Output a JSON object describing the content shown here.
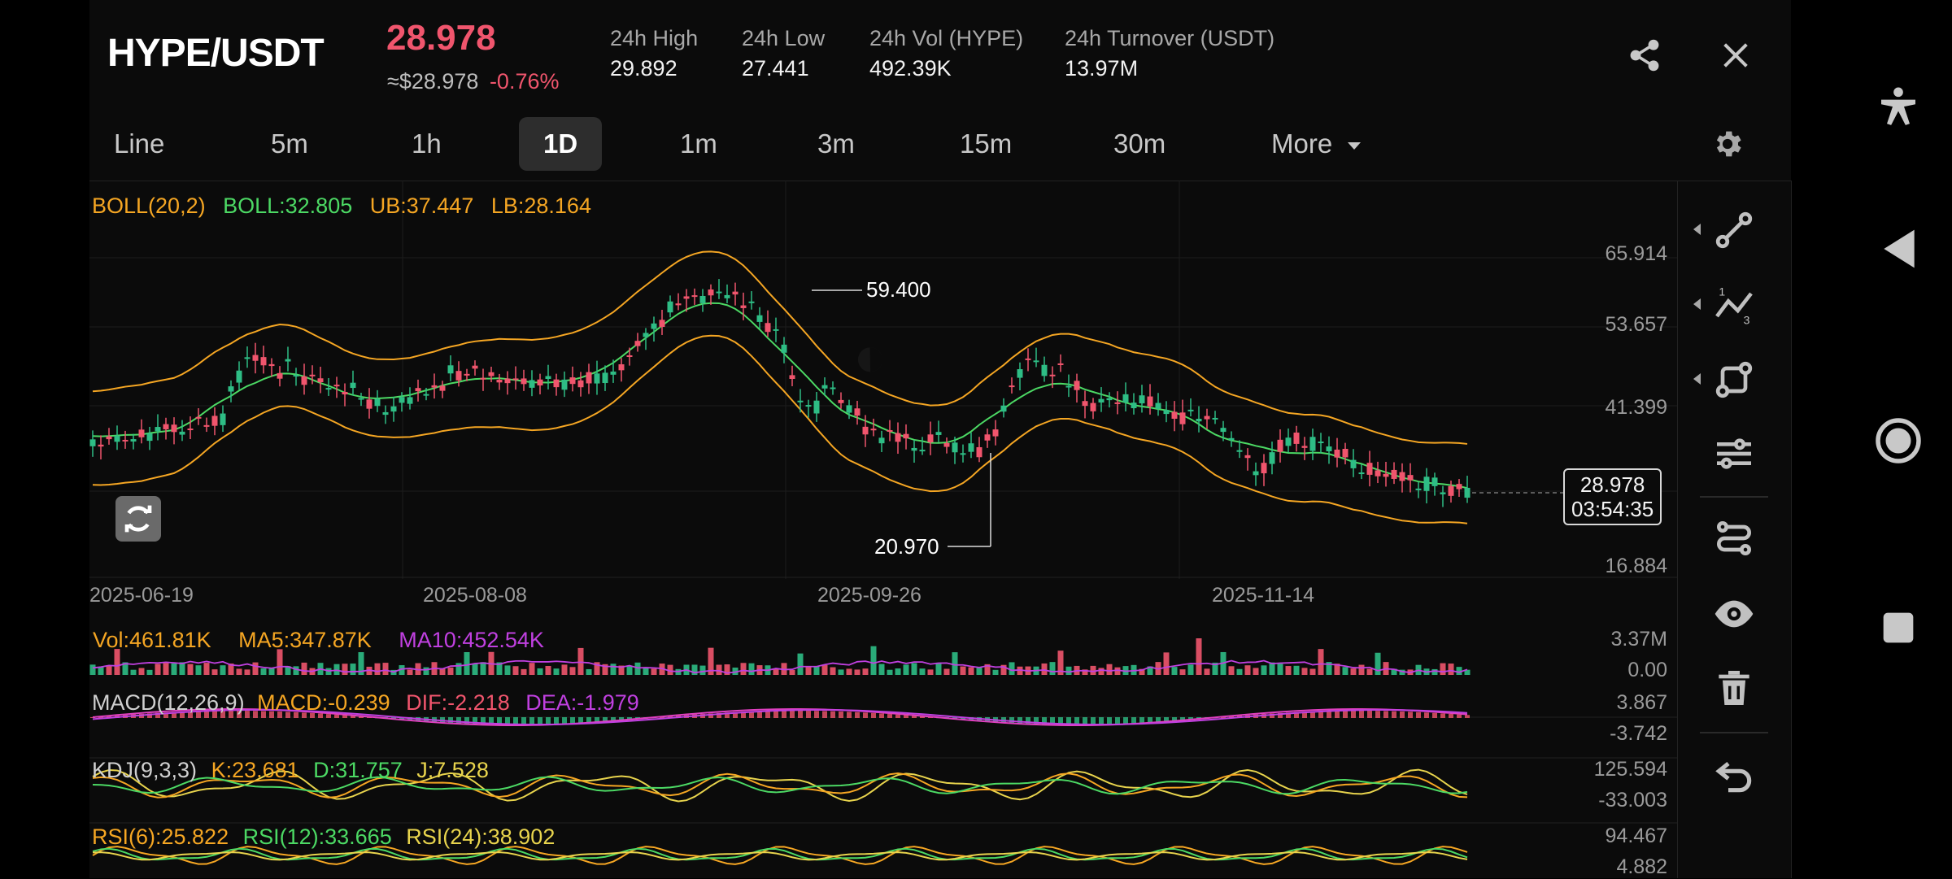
{
  "header": {
    "pair": "HYPE/USDT",
    "price": "28.978",
    "fiat": "≈$28.978",
    "change": "-0.76%",
    "stats": [
      {
        "label": "24h High",
        "value": "29.892"
      },
      {
        "label": "24h Low",
        "value": "27.441"
      },
      {
        "label": "24h Vol (HYPE)",
        "value": "492.39K"
      },
      {
        "label": "24h Turnover (USDT)",
        "value": "13.97M"
      }
    ],
    "share_icon": "share-icon",
    "close_icon": "close-icon"
  },
  "tabs": {
    "items": [
      "Line",
      "5m",
      "1h",
      "1D",
      "1m",
      "3m",
      "15m",
      "30m"
    ],
    "active": "1D",
    "more": "More",
    "settings_icon": "gear-icon"
  },
  "main_chart": {
    "boll_title": "BOLL(20,2)",
    "boll_mid": "BOLL:32.805",
    "boll_ub": "UB:37.447",
    "boll_lb": "LB:28.164",
    "y_labels": [
      "65.914",
      "53.657",
      "41.399",
      "16.884"
    ],
    "dates": [
      "2025-06-19",
      "2025-08-08",
      "2025-09-26",
      "2025-11-14"
    ],
    "high_marker": "59.400",
    "low_marker": "20.970",
    "current_price": "28.978",
    "countdown": "03:54:35"
  },
  "volume": {
    "vol": "Vol:461.81K",
    "ma5": "MA5:347.87K",
    "ma10": "MA10:452.54K",
    "y_top": "3.37M",
    "y_bottom": "0.00"
  },
  "macd": {
    "title": "MACD(12,26,9)",
    "macd": "MACD:-0.239",
    "dif": "DIF:-2.218",
    "dea": "DEA:-1.979",
    "y_top": "3.867",
    "y_bottom": "-3.742"
  },
  "kdj": {
    "title": "KDJ(9,3,3)",
    "k": "K:23.681",
    "d": "D:31.757",
    "j": "J:7.528",
    "y_top": "125.594",
    "y_bottom": "-33.003"
  },
  "rsi": {
    "r6": "RSI(6):25.822",
    "r12": "RSI(12):33.665",
    "r24": "RSI(24):38.902",
    "y_top": "94.467",
    "y_bottom": "4.882"
  },
  "tools": [
    "line-tool-icon",
    "trend-line-icon",
    "shape-tool-icon",
    "parallel-channel-icon",
    "path-tool-icon",
    "eye-icon",
    "trash-icon",
    "undo-icon"
  ],
  "colors": {
    "up": "#2ebd85",
    "down": "#f0556d",
    "boll_band": "#f5a623",
    "boll_mid": "#4cd964",
    "ma10": "#c040e0",
    "dea": "#e040c0",
    "kdj_j": "#e8d44d"
  }
}
